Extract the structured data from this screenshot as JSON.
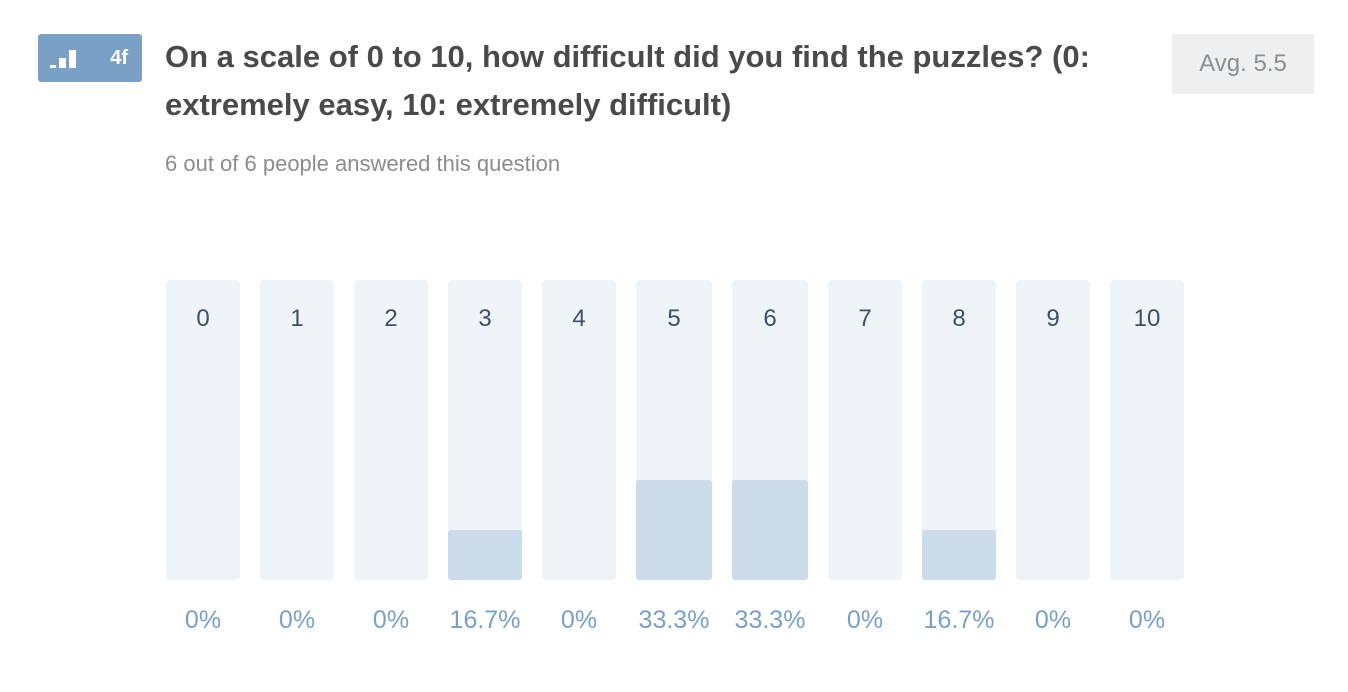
{
  "question": {
    "number": "4f",
    "title": "On a scale of 0 to 10, how difficult did you find the puzzles? (0: extremely easy, 10: extremely difficult)",
    "answered": "6 out of 6 people answered this question",
    "average": "Avg. 5.5",
    "icon": "bar-chart-icon"
  },
  "colors": {
    "accent": "#7ba0c6",
    "track": "#eff4f9",
    "fill": "#cddcea",
    "category_text": "#3d5068",
    "percent_text": "#7ba0c6"
  },
  "chart_data": {
    "type": "bar",
    "categories": [
      "0",
      "1",
      "2",
      "3",
      "4",
      "5",
      "6",
      "7",
      "8",
      "9",
      "10"
    ],
    "values": [
      0,
      0,
      0,
      16.7,
      0,
      33.3,
      33.3,
      0,
      16.7,
      0,
      0
    ],
    "value_labels": [
      "0%",
      "0%",
      "0%",
      "16.7%",
      "0%",
      "33.3%",
      "33.3%",
      "0%",
      "16.7%",
      "0%",
      "0%"
    ],
    "ylim": [
      0,
      100
    ],
    "title": "",
    "xlabel": "",
    "ylabel": ""
  }
}
